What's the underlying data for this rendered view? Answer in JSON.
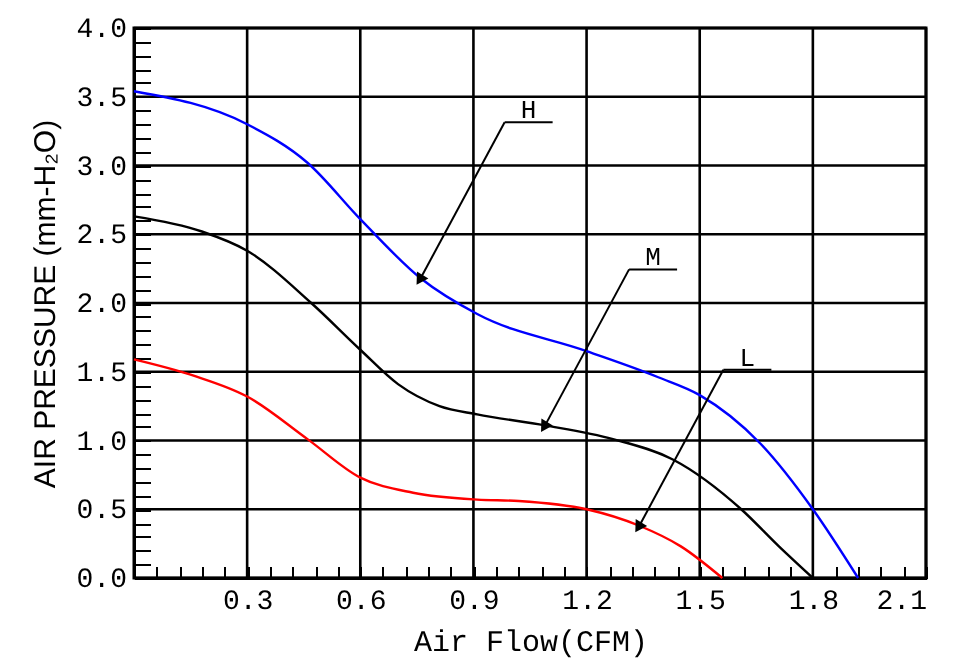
{
  "chart_data": {
    "type": "line",
    "xlabel": "Air Flow(CFM)",
    "ylabel": "AIR PRESSURE (mm-H₂O)",
    "xlim": [
      0,
      2.1
    ],
    "ylim": [
      0,
      4
    ],
    "xticks": [
      {
        "value": 0.06,
        "label": null
      },
      {
        "value": 0.12,
        "label": null
      },
      {
        "value": 0.18,
        "label": null
      },
      {
        "value": 0.24,
        "label": null
      },
      0.3,
      {
        "value": 0.36,
        "label": null
      },
      {
        "value": 0.42,
        "label": null
      },
      {
        "value": 0.48,
        "label": null
      },
      {
        "value": 0.54,
        "label": null
      },
      0.6,
      {
        "value": 0.66,
        "label": null
      },
      {
        "value": 0.72,
        "label": null
      },
      {
        "value": 0.78,
        "label": null
      },
      {
        "value": 0.84,
        "label": null
      },
      0.9,
      {
        "value": 0.96,
        "label": null
      },
      {
        "value": 1.02,
        "label": null
      },
      {
        "value": 1.08,
        "label": null
      },
      {
        "value": 1.14,
        "label": null
      },
      1.2,
      {
        "value": 1.26,
        "label": null
      },
      {
        "value": 1.32,
        "label": null
      },
      {
        "value": 1.38,
        "label": null
      },
      {
        "value": 1.44,
        "label": null
      },
      1.5,
      {
        "value": 1.56,
        "label": null
      },
      {
        "value": 1.62,
        "label": null
      },
      {
        "value": 1.68,
        "label": null
      },
      {
        "value": 1.74,
        "label": null
      },
      1.8,
      {
        "value": 1.86,
        "label": null
      },
      {
        "value": 1.92,
        "label": null
      },
      {
        "value": 1.98,
        "label": null
      },
      {
        "value": 2.04,
        "label": null
      },
      2.1
    ],
    "yticks": [
      {
        "value": 0,
        "label": "0.0"
      },
      {
        "value": 0.1,
        "label": null
      },
      {
        "value": 0.2,
        "label": null
      },
      {
        "value": 0.3,
        "label": null
      },
      {
        "value": 0.4,
        "label": null
      },
      0.5,
      {
        "value": 0.6,
        "label": null
      },
      {
        "value": 0.7,
        "label": null
      },
      {
        "value": 0.8,
        "label": null
      },
      {
        "value": 0.9,
        "label": null
      },
      {
        "value": 1,
        "label": "1.0"
      },
      {
        "value": 1.1,
        "label": null
      },
      {
        "value": 1.2,
        "label": null
      },
      {
        "value": 1.3,
        "label": null
      },
      {
        "value": 1.4,
        "label": null
      },
      1.5,
      {
        "value": 1.6,
        "label": null
      },
      {
        "value": 1.7,
        "label": null
      },
      {
        "value": 1.8,
        "label": null
      },
      {
        "value": 1.9,
        "label": null
      },
      {
        "value": 2,
        "label": "2.0"
      },
      {
        "value": 2.1,
        "label": null
      },
      {
        "value": 2.2,
        "label": null
      },
      {
        "value": 2.3,
        "label": null
      },
      {
        "value": 2.4,
        "label": null
      },
      2.5,
      {
        "value": 2.6,
        "label": null
      },
      {
        "value": 2.7,
        "label": null
      },
      {
        "value": 2.8,
        "label": null
      },
      {
        "value": 2.9,
        "label": null
      },
      {
        "value": 3,
        "label": "3.0"
      },
      {
        "value": 3.1,
        "label": null
      },
      {
        "value": 3.2,
        "label": null
      },
      {
        "value": 3.3,
        "label": null
      },
      {
        "value": 3.4,
        "label": null
      },
      3.5,
      {
        "value": 3.6,
        "label": null
      },
      {
        "value": 3.7,
        "label": null
      },
      {
        "value": 3.8,
        "label": null
      },
      {
        "value": 3.9,
        "label": null
      },
      {
        "value": 4,
        "label": "4.0"
      }
    ],
    "grid": true,
    "marker": "none",
    "line_style": "solid",
    "series": [
      {
        "color": "#0000ff",
        "x": [
          0,
          0.3,
          0.46,
          0.6,
          0.76,
          0.91,
          1.2,
          1.39,
          1.5,
          1.66,
          1.8,
          1.92
        ],
        "values": [
          3.54,
          3.3,
          3.02,
          2.61,
          2.18,
          1.92,
          1.65,
          1.46,
          1.33,
          0.98,
          0.5,
          0
        ]
      },
      {
        "color": "#000000",
        "x": [
          0,
          0.18,
          0.3,
          0.47,
          0.6,
          0.7,
          0.81,
          0.91,
          1.09,
          1.27,
          1.43,
          1.61,
          1.71,
          1.8
        ],
        "values": [
          2.63,
          2.52,
          2.38,
          2.0,
          1.66,
          1.41,
          1.25,
          1.19,
          1.11,
          1.01,
          0.86,
          0.5,
          0.23,
          0
        ]
      },
      {
        "color": "#ff0000",
        "x": [
          0,
          0.16,
          0.3,
          0.46,
          0.6,
          0.74,
          0.91,
          1.02,
          1.2,
          1.34,
          1.45,
          1.56
        ],
        "values": [
          1.59,
          1.47,
          1.32,
          1.01,
          0.73,
          0.62,
          0.57,
          0.56,
          0.5,
          0.38,
          0.23,
          0
        ]
      }
    ],
    "annotations": [
      {
        "text": "H",
        "x": 0.76,
        "y": 2.18
      },
      {
        "text": "M",
        "x": 1.09,
        "y": 1.11
      },
      {
        "text": "L",
        "x": 1.34,
        "y": 0.38
      }
    ]
  }
}
